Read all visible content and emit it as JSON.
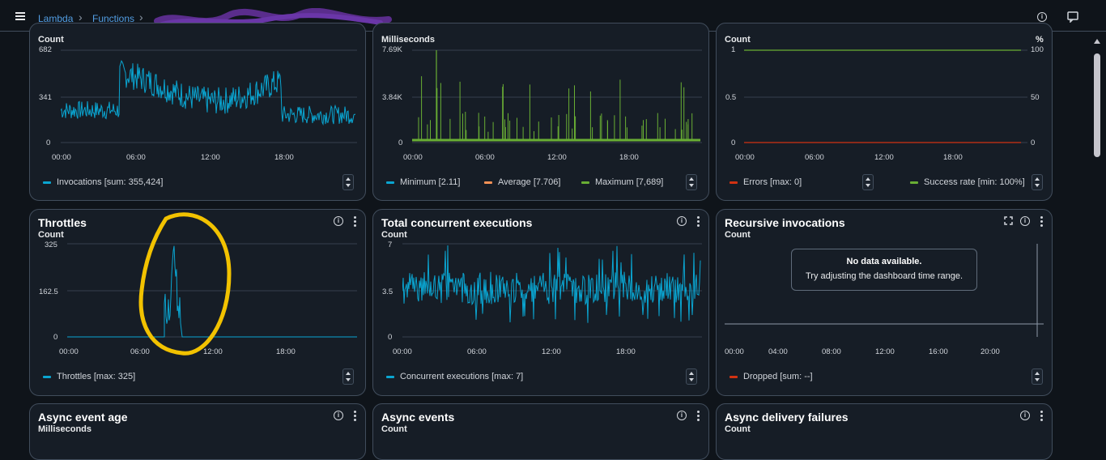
{
  "breadcrumb": {
    "items": [
      "Lambda",
      "Functions"
    ]
  },
  "colors": {
    "blue": "#0aa5d1",
    "orange": "#f89256",
    "green": "#69ae34",
    "red": "#d13212",
    "accent_annotation": "#f2c200"
  },
  "panels": {
    "invocations": {
      "unit": "Count",
      "yticks": [
        "682",
        "341",
        "0"
      ],
      "xticks": [
        "00:00",
        "06:00",
        "12:00",
        "18:00"
      ],
      "legend": [
        {
          "label": "Invocations [sum: 355,424]",
          "color": "#0aa5d1"
        }
      ]
    },
    "duration": {
      "unit": "Milliseconds",
      "yticks": [
        "7.69K",
        "3.84K",
        "0"
      ],
      "xticks": [
        "00:00",
        "06:00",
        "12:00",
        "18:00"
      ],
      "legend": [
        {
          "label": "Minimum [2.11]",
          "color": "#0aa5d1"
        },
        {
          "label": "Average [7.706]",
          "color": "#f89256"
        },
        {
          "label": "Maximum [7,689]",
          "color": "#69ae34"
        }
      ]
    },
    "errors": {
      "unit": "Count",
      "unit_right": "%",
      "yticks": [
        "1",
        "0.5",
        "0"
      ],
      "yticks_right": [
        "100",
        "50",
        "0"
      ],
      "xticks": [
        "00:00",
        "06:00",
        "12:00",
        "18:00"
      ],
      "legend": [
        {
          "label": "Errors [max: 0]",
          "color": "#d13212"
        },
        {
          "label": "Success rate [min: 100%]",
          "color": "#69ae34"
        }
      ]
    },
    "throttles": {
      "title": "Throttles",
      "unit": "Count",
      "yticks": [
        "325",
        "162.5",
        "0"
      ],
      "xticks": [
        "00:00",
        "06:00",
        "12:00",
        "18:00"
      ],
      "legend": [
        {
          "label": "Throttles [max: 325]",
          "color": "#0aa5d1"
        }
      ]
    },
    "concurrent": {
      "title": "Total concurrent executions",
      "unit": "Count",
      "yticks": [
        "7",
        "3.5",
        "0"
      ],
      "xticks": [
        "00:00",
        "06:00",
        "12:00",
        "18:00"
      ],
      "legend": [
        {
          "label": "Concurrent executions [max: 7]",
          "color": "#0aa5d1"
        }
      ]
    },
    "recursive": {
      "title": "Recursive invocations",
      "unit": "Count",
      "nodata_title": "No data available.",
      "nodata_text": "Try adjusting the dashboard time range.",
      "xticks": [
        "00:00",
        "04:00",
        "08:00",
        "12:00",
        "16:00",
        "20:00"
      ],
      "legend": [
        {
          "label": "Dropped [sum: --]",
          "color": "#d13212"
        }
      ]
    },
    "async_age": {
      "title": "Async event age",
      "unit": "Milliseconds"
    },
    "async_events": {
      "title": "Async events",
      "unit": "Count"
    },
    "async_failures": {
      "title": "Async delivery failures",
      "unit": "Count"
    }
  },
  "icons": {
    "info": "i"
  }
}
